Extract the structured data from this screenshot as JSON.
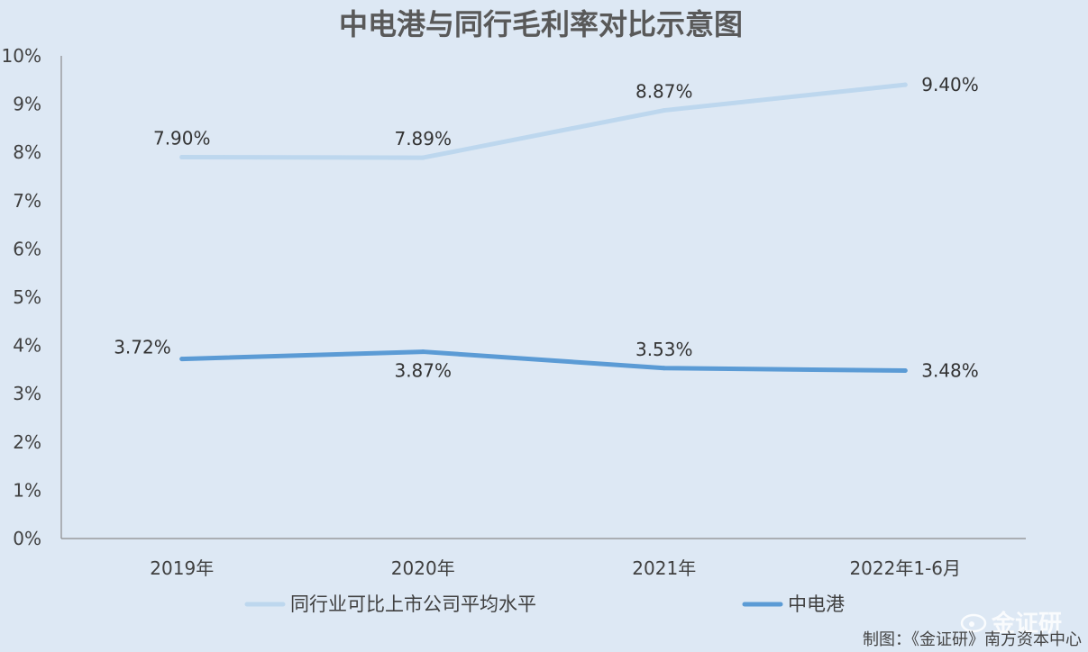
{
  "chart_data": {
    "type": "line",
    "title": "中电港与同行毛利率对比示意图",
    "categories": [
      "2019年",
      "2020年",
      "2021年",
      "2022年1-6月"
    ],
    "y_ticks": [
      "0%",
      "1%",
      "2%",
      "3%",
      "4%",
      "5%",
      "6%",
      "7%",
      "8%",
      "9%",
      "10%"
    ],
    "ylim": [
      0,
      10
    ],
    "y_unit": "%",
    "grid": false,
    "legend_position": "bottom",
    "series": [
      {
        "name": "同行业可比上市公司平均水平",
        "values": [
          7.9,
          7.89,
          8.87,
          9.4
        ],
        "labels": [
          "7.90%",
          "7.89%",
          "8.87%",
          "9.40%"
        ],
        "label_position": [
          "above",
          "above",
          "above",
          "right"
        ],
        "color": "#bdd7ee"
      },
      {
        "name": "中电港",
        "values": [
          3.72,
          3.87,
          3.53,
          3.48
        ],
        "labels": [
          "3.72%",
          "3.87%",
          "3.53%",
          "3.48%"
        ],
        "label_position": [
          "left",
          "below",
          "above",
          "right"
        ],
        "color": "#5b9bd5"
      }
    ]
  },
  "footer": {
    "credit": "制图：《金证研》南方资本中心",
    "watermark": "金证研"
  }
}
